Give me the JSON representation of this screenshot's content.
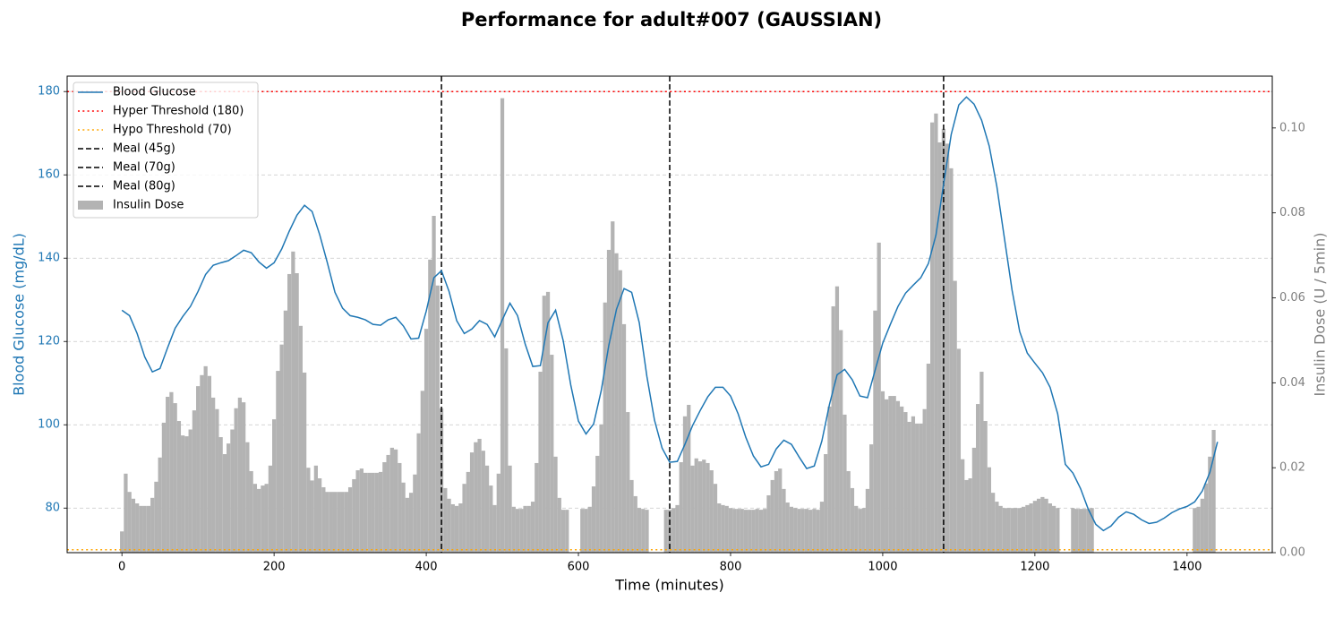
{
  "chart_data": {
    "type": "line",
    "title": "Performance for adult#007 (GAUSSIAN)",
    "xlabel": "Time (minutes)",
    "ylabel": "Blood Glucose (mg/dL)",
    "y2label": "Insulin Dose (U / 5min)",
    "xlim": [
      -72,
      1512
    ],
    "ylim": [
      69.3,
      183.7
    ],
    "y2lim": [
      0,
      0.1122
    ],
    "xticks": [
      0,
      200,
      400,
      600,
      800,
      1000,
      1200,
      1400
    ],
    "yticks": [
      80,
      100,
      120,
      140,
      160,
      180
    ],
    "y2ticks": [
      {
        "value": 0,
        "label": "0.00"
      },
      {
        "value": 0.02,
        "label": "0.02"
      },
      {
        "value": 0.04,
        "label": "0.04"
      },
      {
        "value": 0.06,
        "label": "0.06"
      },
      {
        "value": 0.08,
        "label": "0.08"
      },
      {
        "value": 0.1,
        "label": "0.10"
      }
    ],
    "grid": true,
    "legend": "upper left",
    "series": [
      {
        "name": "Blood Glucose",
        "type": "line",
        "color": "#1f77b4",
        "x": [
          0,
          10,
          20,
          30,
          40,
          50,
          60,
          70,
          80,
          90,
          100,
          110,
          120,
          130,
          140,
          150,
          160,
          170,
          180,
          190,
          200,
          210,
          220,
          230,
          240,
          250,
          260,
          270,
          280,
          290,
          300,
          310,
          320,
          330,
          340,
          350,
          360,
          370,
          380,
          390,
          400,
          410,
          420,
          430,
          440,
          450,
          460,
          470,
          480,
          490,
          500,
          510,
          520,
          530,
          540,
          550,
          560,
          570,
          580,
          590,
          600,
          610,
          620,
          630,
          640,
          650,
          660,
          670,
          680,
          690,
          700,
          710,
          720,
          730,
          740,
          750,
          760,
          770,
          780,
          790,
          800,
          810,
          820,
          830,
          840,
          850,
          860,
          870,
          880,
          890,
          900,
          910,
          920,
          930,
          940,
          950,
          960,
          970,
          980,
          990,
          1000,
          1010,
          1020,
          1030,
          1040,
          1050,
          1060,
          1070,
          1080,
          1090,
          1100,
          1110,
          1120,
          1130,
          1140,
          1150,
          1160,
          1170,
          1180,
          1190,
          1200,
          1210,
          1220,
          1230,
          1240,
          1250,
          1260,
          1270,
          1280,
          1290,
          1300,
          1310,
          1320,
          1330,
          1340,
          1350,
          1360,
          1370,
          1380,
          1390,
          1400,
          1410,
          1420,
          1430,
          1440
        ],
        "values": [
          127.5,
          126.2,
          121.9,
          116.3,
          112.7,
          113.5,
          118.5,
          123.2,
          126,
          128.4,
          132,
          136.1,
          138.3,
          138.9,
          139.4,
          140.6,
          141.9,
          141.3,
          139.1,
          137.6,
          138.9,
          142.2,
          146.5,
          150.3,
          152.7,
          151.2,
          145.6,
          138.9,
          131.8,
          128,
          126.2,
          125.8,
          125.2,
          124.1,
          123.9,
          125.2,
          125.8,
          123.7,
          120.6,
          120.8,
          127.3,
          135.3,
          137,
          132,
          125,
          121.9,
          123,
          125,
          124.1,
          121.1,
          125.2,
          129.2,
          126.2,
          119.4,
          114,
          114.2,
          124.5,
          127.5,
          120.2,
          109.5,
          100.9,
          97.8,
          100.2,
          108.2,
          119.1,
          127.7,
          132.7,
          131.8,
          124.5,
          111.6,
          101.1,
          94.4,
          91,
          91.2,
          95.3,
          99.8,
          103.4,
          106.7,
          109,
          109,
          106.9,
          102.6,
          97,
          92.5,
          89.9,
          90.5,
          94.2,
          96.3,
          95.3,
          92.3,
          89.5,
          90.1,
          96.1,
          104.9,
          112,
          113.3,
          110.8,
          106.9,
          106.5,
          113.1,
          119.6,
          124.1,
          128.4,
          131.6,
          133.5,
          135.3,
          138.7,
          145.6,
          157.8,
          169.7,
          176.8,
          178.7,
          177,
          173.1,
          166.9,
          157.2,
          144.7,
          132.3,
          122.4,
          117.2,
          114.8,
          112.5,
          109,
          102.6,
          90.5,
          88.4,
          84.7,
          79.8,
          76.1,
          74.6,
          75.7,
          77.8,
          79.1,
          78.5,
          77.2,
          76.3,
          76.6,
          77.6,
          78.9,
          79.8,
          80.4,
          81.5,
          84.1,
          88.6,
          95.9
        ]
      },
      {
        "name": "Hyper Threshold (180)",
        "type": "hline",
        "color": "red",
        "linestyle": "dotted",
        "value": 180
      },
      {
        "name": "Hypo Threshold (70)",
        "type": "hline",
        "color": "orange",
        "linestyle": "dotted",
        "value": 70
      },
      {
        "name": "Meal (45g)",
        "type": "vline",
        "color": "black",
        "linestyle": "dashed",
        "value": 420
      },
      {
        "name": "Meal (70g)",
        "type": "vline",
        "color": "black",
        "linestyle": "dashed",
        "value": 720
      },
      {
        "name": "Meal (80g)",
        "type": "vline",
        "color": "black",
        "linestyle": "dashed",
        "value": 1080
      },
      {
        "name": "Insulin Dose",
        "type": "bar",
        "color": "#b3b3b3",
        "axis": "y2",
        "x": [
          0,
          5,
          10,
          15,
          20,
          25,
          30,
          35,
          40,
          45,
          50,
          55,
          60,
          65,
          70,
          75,
          80,
          85,
          90,
          95,
          100,
          105,
          110,
          115,
          120,
          125,
          130,
          135,
          140,
          145,
          150,
          155,
          160,
          165,
          170,
          175,
          180,
          185,
          190,
          195,
          200,
          205,
          210,
          215,
          220,
          225,
          230,
          235,
          240,
          245,
          250,
          255,
          260,
          265,
          270,
          275,
          280,
          285,
          290,
          295,
          300,
          305,
          310,
          315,
          320,
          325,
          330,
          335,
          340,
          345,
          350,
          355,
          360,
          365,
          370,
          375,
          380,
          385,
          390,
          395,
          400,
          405,
          410,
          415,
          420,
          425,
          430,
          435,
          440,
          445,
          450,
          455,
          460,
          465,
          470,
          475,
          480,
          485,
          490,
          495,
          500,
          505,
          510,
          515,
          520,
          525,
          530,
          535,
          540,
          545,
          550,
          555,
          560,
          565,
          570,
          575,
          580,
          585,
          590,
          595,
          600,
          605,
          610,
          615,
          620,
          625,
          630,
          635,
          640,
          645,
          650,
          655,
          660,
          665,
          670,
          675,
          680,
          685,
          690,
          695,
          700,
          705,
          710,
          715,
          720,
          725,
          730,
          735,
          740,
          745,
          750,
          755,
          760,
          765,
          770,
          775,
          780,
          785,
          790,
          795,
          800,
          805,
          810,
          815,
          820,
          825,
          830,
          835,
          840,
          845,
          850,
          855,
          860,
          865,
          870,
          875,
          880,
          885,
          890,
          895,
          900,
          905,
          910,
          915,
          920,
          925,
          930,
          935,
          940,
          945,
          950,
          955,
          960,
          965,
          970,
          975,
          980,
          985,
          990,
          995,
          1000,
          1005,
          1010,
          1015,
          1020,
          1025,
          1030,
          1035,
          1040,
          1045,
          1050,
          1055,
          1060,
          1065,
          1070,
          1075,
          1080,
          1085,
          1090,
          1095,
          1100,
          1105,
          1110,
          1115,
          1120,
          1125,
          1130,
          1135,
          1140,
          1145,
          1150,
          1155,
          1160,
          1165,
          1170,
          1175,
          1180,
          1185,
          1190,
          1195,
          1200,
          1205,
          1210,
          1215,
          1220,
          1225,
          1230,
          1235,
          1240,
          1245,
          1250,
          1255,
          1260,
          1265,
          1270,
          1275,
          1280,
          1285,
          1290,
          1295,
          1300,
          1305,
          1310,
          1315,
          1320,
          1325,
          1330,
          1335,
          1340,
          1345,
          1350,
          1355,
          1360,
          1365,
          1370,
          1375,
          1380,
          1385,
          1390,
          1395,
          1400,
          1405,
          1410,
          1415,
          1420,
          1425,
          1430,
          1435
        ],
        "values": [
          0.005,
          0.0186,
          0.0143,
          0.0127,
          0.0116,
          0.011,
          0.011,
          0.011,
          0.0129,
          0.0167,
          0.0224,
          0.0306,
          0.0367,
          0.0378,
          0.0352,
          0.031,
          0.0276,
          0.0274,
          0.029,
          0.0335,
          0.0392,
          0.0418,
          0.0439,
          0.0416,
          0.0365,
          0.0338,
          0.0272,
          0.0232,
          0.0257,
          0.029,
          0.034,
          0.0365,
          0.0354,
          0.026,
          0.0192,
          0.0162,
          0.015,
          0.0158,
          0.0162,
          0.0205,
          0.0314,
          0.0428,
          0.049,
          0.057,
          0.0656,
          0.0709,
          0.0658,
          0.0534,
          0.0424,
          0.02,
          0.017,
          0.0205,
          0.0175,
          0.0154,
          0.0143,
          0.0143,
          0.0143,
          0.0143,
          0.0143,
          0.0143,
          0.0154,
          0.0173,
          0.0194,
          0.0198,
          0.0188,
          0.0188,
          0.0188,
          0.0188,
          0.019,
          0.0213,
          0.023,
          0.0247,
          0.0243,
          0.0211,
          0.0165,
          0.0129,
          0.0141,
          0.0184,
          0.0281,
          0.0381,
          0.0527,
          0.069,
          0.0793,
          0.0629,
          0.034,
          0.0152,
          0.0127,
          0.0114,
          0.011,
          0.0116,
          0.0162,
          0.019,
          0.0236,
          0.026,
          0.0268,
          0.024,
          0.0205,
          0.0158,
          0.0112,
          0.0186,
          0.107,
          0.0481,
          0.0205,
          0.0108,
          0.0103,
          0.0103,
          0.011,
          0.011,
          0.012,
          0.0211,
          0.0426,
          0.0605,
          0.0614,
          0.0466,
          0.0226,
          0.0129,
          0.0101,
          0.0101,
          null,
          null,
          null,
          0.0103,
          0.0103,
          0.0108,
          0.0156,
          0.0228,
          0.0302,
          0.0589,
          0.0713,
          0.078,
          0.0705,
          0.0665,
          0.0538,
          0.0331,
          0.0171,
          0.0133,
          0.0105,
          0.0103,
          0.0101,
          null,
          null,
          null,
          null,
          0.0101,
          0.0101,
          0.0105,
          0.0112,
          0.0213,
          0.0321,
          0.0348,
          0.0205,
          0.0222,
          0.0215,
          0.0219,
          0.0211,
          0.0194,
          0.0162,
          0.0116,
          0.0112,
          0.011,
          0.0105,
          0.0103,
          0.0103,
          0.0103,
          0.0101,
          0.0101,
          0.0101,
          0.0103,
          0.0101,
          0.0103,
          0.0135,
          0.0171,
          0.0192,
          0.0198,
          0.015,
          0.0118,
          0.0108,
          0.0105,
          0.0103,
          0.0103,
          0.0103,
          0.0101,
          0.0103,
          0.0101,
          0.012,
          0.0232,
          0.0344,
          0.058,
          0.0627,
          0.0524,
          0.0325,
          0.0192,
          0.0152,
          0.011,
          0.0103,
          0.0105,
          0.015,
          0.0255,
          0.057,
          0.073,
          0.038,
          0.0361,
          0.0369,
          0.0369,
          0.0357,
          0.0344,
          0.0331,
          0.0308,
          0.0321,
          0.0304,
          0.0304,
          0.0338,
          0.0445,
          0.1013,
          0.1034,
          0.0966,
          0.0998,
          0.0963,
          0.0905,
          0.064,
          0.048,
          0.022,
          0.0171,
          0.0175,
          0.0247,
          0.035,
          0.0426,
          0.031,
          0.0201,
          0.0141,
          0.012,
          0.011,
          0.0105,
          0.0105,
          0.0105,
          0.0105,
          0.0105,
          0.0108,
          0.0112,
          0.0116,
          0.0122,
          0.0127,
          0.0131,
          0.0127,
          0.0116,
          0.011,
          0.0105,
          null,
          null,
          null,
          0.0105,
          0.0103,
          0.0103,
          0.0103,
          0.0103,
          0.0105,
          null,
          null,
          null,
          null,
          null,
          null,
          null,
          null,
          null,
          null,
          null,
          null,
          null,
          null,
          null,
          null,
          null,
          null,
          null,
          null,
          null,
          null,
          null,
          null,
          null,
          null,
          0.0105,
          0.0108,
          0.0127,
          0.0163,
          0.0226,
          0.0289
        ]
      }
    ]
  }
}
